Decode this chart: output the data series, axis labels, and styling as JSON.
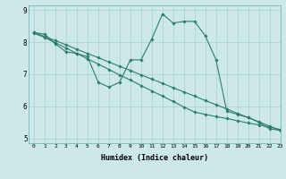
{
  "xlabel": "Humidex (Indice chaleur)",
  "background_color": "#cce8e8",
  "line_color": "#2e7d6e",
  "grid_color": "#aacfcf",
  "xlim": [
    -0.5,
    23
  ],
  "ylim": [
    4.85,
    9.15
  ],
  "yticks": [
    5,
    6,
    7,
    8,
    9
  ],
  "xticks": [
    0,
    1,
    2,
    3,
    4,
    5,
    6,
    7,
    8,
    9,
    10,
    11,
    12,
    13,
    14,
    15,
    16,
    17,
    18,
    19,
    20,
    21,
    22,
    23
  ],
  "series_wavy_x": [
    0,
    1,
    2,
    3,
    4,
    5,
    6,
    7,
    8,
    9,
    10,
    11,
    12,
    13,
    14,
    15,
    16,
    17,
    18,
    19,
    20,
    21,
    22,
    23
  ],
  "series_wavy_y": [
    8.3,
    8.25,
    7.95,
    7.7,
    7.65,
    7.55,
    6.75,
    6.6,
    6.75,
    7.45,
    7.45,
    8.1,
    8.88,
    8.6,
    8.65,
    8.65,
    8.2,
    7.45,
    5.85,
    5.75,
    5.65,
    5.5,
    5.3,
    5.25
  ],
  "series_line1_x": [
    0,
    1,
    2,
    3,
    4,
    5,
    6,
    7,
    8,
    9,
    10,
    11,
    12,
    13,
    14,
    15,
    16,
    17,
    18,
    19,
    20,
    21,
    22,
    23
  ],
  "series_line1_y": [
    8.28,
    8.15,
    7.98,
    7.82,
    7.65,
    7.48,
    7.32,
    7.15,
    6.98,
    6.82,
    6.65,
    6.48,
    6.32,
    6.15,
    5.98,
    5.82,
    5.75,
    5.68,
    5.62,
    5.55,
    5.48,
    5.42,
    5.35,
    5.28
  ],
  "series_line2_x": [
    0,
    1,
    2,
    3,
    4,
    5,
    6,
    7,
    8,
    9,
    10,
    11,
    12,
    13,
    14,
    15,
    16,
    17,
    18,
    19,
    20,
    21,
    22,
    23
  ],
  "series_line2_y": [
    8.3,
    8.18,
    8.05,
    7.92,
    7.78,
    7.65,
    7.52,
    7.38,
    7.25,
    7.12,
    6.98,
    6.85,
    6.72,
    6.58,
    6.45,
    6.32,
    6.18,
    6.05,
    5.92,
    5.78,
    5.65,
    5.52,
    5.38,
    5.25
  ]
}
